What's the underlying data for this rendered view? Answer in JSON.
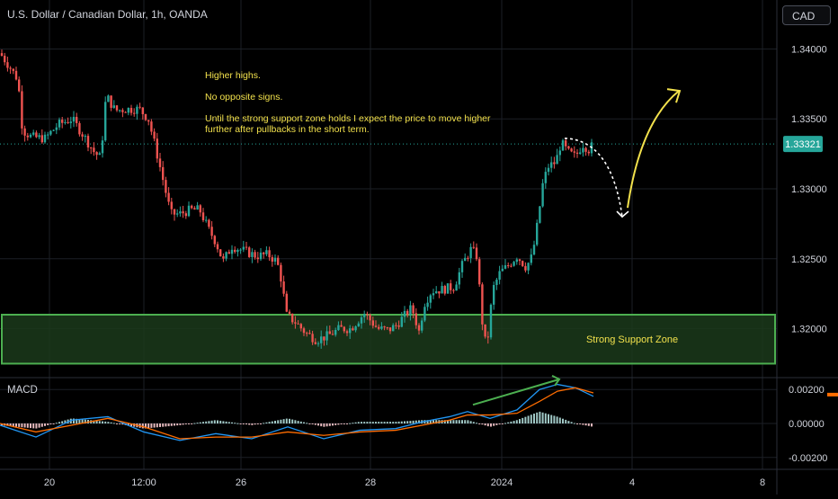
{
  "header": {
    "title": "U.S. Dollar / Canadian Dollar, 1h, OANDA",
    "currency_button": "CAD"
  },
  "annotation": {
    "line1": "Higher highs.",
    "line2": "No opposite signs.",
    "line3": "Until the strong support zone holds I expect the price to move higher further after pullbacks in the short term."
  },
  "support_zone_label": "Strong Support Zone",
  "macd_label": "MACD",
  "colors": {
    "background": "#000000",
    "up_candle": "#26a69a",
    "down_candle": "#ef5350",
    "support_border": "#4caf50",
    "support_fill": "#1b3a1b",
    "annotation_text": "#f2e14c",
    "price_tag": "#26a69a",
    "macd_line": "#2196f3",
    "signal_line": "#ff6d00",
    "divergence_line": "#4caf50"
  },
  "chart_data": [
    {
      "type": "candlestick",
      "title": "U.S. Dollar / Canadian Dollar, 1h, OANDA",
      "x_tick_labels": [
        "20",
        "12:00",
        "26",
        "28",
        "2024",
        "4",
        "8"
      ],
      "y_tick_labels": [
        "1.34000",
        "1.33500",
        "1.33000",
        "1.32500",
        "1.32000"
      ],
      "ylim": [
        1.3165,
        1.3435
      ],
      "last_price_label": "1.33321",
      "last_price": 1.33321,
      "grid": true,
      "support_zone": [
        1.3175,
        1.321
      ],
      "close_path": [
        [
          0,
          1.3397
        ],
        [
          10,
          1.3388
        ],
        [
          20,
          1.3378
        ],
        [
          25,
          1.3342
        ],
        [
          35,
          1.3337
        ],
        [
          50,
          1.3336
        ],
        [
          65,
          1.3346
        ],
        [
          80,
          1.335
        ],
        [
          92,
          1.3339
        ],
        [
          105,
          1.3326
        ],
        [
          112,
          1.3322
        ],
        [
          118,
          1.3367
        ],
        [
          128,
          1.3356
        ],
        [
          140,
          1.3357
        ],
        [
          155,
          1.3357
        ],
        [
          165,
          1.335
        ],
        [
          172,
          1.3332
        ],
        [
          180,
          1.331
        ],
        [
          190,
          1.3282
        ],
        [
          200,
          1.3282
        ],
        [
          212,
          1.3285
        ],
        [
          222,
          1.3285
        ],
        [
          232,
          1.3271
        ],
        [
          240,
          1.3262
        ],
        [
          248,
          1.3248
        ],
        [
          258,
          1.3259
        ],
        [
          270,
          1.3256
        ],
        [
          285,
          1.3252
        ],
        [
          298,
          1.3253
        ],
        [
          308,
          1.3248
        ],
        [
          314,
          1.3232
        ],
        [
          318,
          1.321
        ],
        [
          328,
          1.3205
        ],
        [
          340,
          1.3197
        ],
        [
          352,
          1.3192
        ],
        [
          365,
          1.3195
        ],
        [
          378,
          1.32
        ],
        [
          390,
          1.32
        ],
        [
          405,
          1.3211
        ],
        [
          420,
          1.32
        ],
        [
          432,
          1.3199
        ],
        [
          440,
          1.3202
        ],
        [
          448,
          1.3208
        ],
        [
          458,
          1.3215
        ],
        [
          466,
          1.3198
        ],
        [
          472,
          1.3218
        ],
        [
          480,
          1.3227
        ],
        [
          492,
          1.3228
        ],
        [
          505,
          1.323
        ],
        [
          515,
          1.3247
        ],
        [
          524,
          1.3257
        ],
        [
          530,
          1.3252
        ],
        [
          534,
          1.3224
        ],
        [
          538,
          1.3192
        ],
        [
          542,
          1.319
        ],
        [
          548,
          1.3228
        ],
        [
          556,
          1.324
        ],
        [
          565,
          1.3245
        ],
        [
          575,
          1.3252
        ],
        [
          585,
          1.3244
        ],
        [
          592,
          1.3252
        ],
        [
          598,
          1.3276
        ],
        [
          604,
          1.3305
        ],
        [
          610,
          1.3316
        ],
        [
          618,
          1.3319
        ],
        [
          624,
          1.3333
        ],
        [
          632,
          1.3326
        ],
        [
          640,
          1.3323
        ],
        [
          648,
          1.3332
        ],
        [
          655,
          1.3328
        ],
        [
          660,
          1.3332
        ]
      ],
      "projection": {
        "pullback_to": 1.328,
        "target": 1.337
      }
    },
    {
      "type": "line",
      "title": "MACD",
      "y_tick_labels": [
        "0.00200",
        "0.00000",
        "-0.00200"
      ],
      "ylim": [
        -0.0027,
        0.0027
      ],
      "series": [
        {
          "color": "#2196f3",
          "values": [
            [
              0,
              -0.0001
            ],
            [
              40,
              -0.0008
            ],
            [
              80,
              0.0002
            ],
            [
              120,
              0.0004
            ],
            [
              160,
              -0.0005
            ],
            [
              200,
              -0.001
            ],
            [
              240,
              -0.0006
            ],
            [
              280,
              -0.0009
            ],
            [
              320,
              -0.0002
            ],
            [
              360,
              -0.0009
            ],
            [
              400,
              -0.0004
            ],
            [
              440,
              -0.0003
            ],
            [
              470,
              0.0001
            ],
            [
              500,
              0.0004
            ],
            [
              520,
              0.0007
            ],
            [
              545,
              0.0003
            ],
            [
              575,
              0.0008
            ],
            [
              600,
              0.002
            ],
            [
              620,
              0.0023
            ],
            [
              640,
              0.0021
            ],
            [
              660,
              0.0016
            ]
          ]
        },
        {
          "color": "#ff6d00",
          "values": [
            [
              0,
              0.0
            ],
            [
              40,
              -0.0005
            ],
            [
              80,
              -0.0001
            ],
            [
              120,
              0.0003
            ],
            [
              160,
              -0.0002
            ],
            [
              200,
              -0.0009
            ],
            [
              240,
              -0.0008
            ],
            [
              280,
              -0.0008
            ],
            [
              320,
              -0.0005
            ],
            [
              360,
              -0.0007
            ],
            [
              400,
              -0.0005
            ],
            [
              440,
              -0.0004
            ],
            [
              470,
              -0.0001
            ],
            [
              500,
              0.0002
            ],
            [
              520,
              0.0005
            ],
            [
              545,
              0.0005
            ],
            [
              575,
              0.0006
            ],
            [
              600,
              0.0013
            ],
            [
              620,
              0.0019
            ],
            [
              640,
              0.0021
            ],
            [
              660,
              0.0018
            ]
          ]
        }
      ],
      "divergence_line": [
        [
          526,
          0.0011
        ],
        [
          622,
          0.0026
        ]
      ]
    }
  ]
}
